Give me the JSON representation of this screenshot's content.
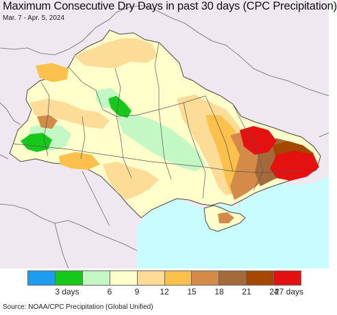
{
  "header": {
    "title": "Maximum Consecutive Dry Days in past 30 days (CPC Precipitation)",
    "subtitle": "Mar. 7 - Apr. 5, 2024"
  },
  "legend": {
    "colors": [
      "#1e9cf0",
      "#16c81a",
      "#c3f7c3",
      "#ffffcc",
      "#fcdc96",
      "#fcc04c",
      "#d48b4a",
      "#a56a3c",
      "#a44700",
      "#e41111"
    ],
    "labels": [
      {
        "text": "3 days",
        "boundary": 2
      },
      {
        "text": "6",
        "boundary": 3
      },
      {
        "text": "9",
        "boundary": 4
      },
      {
        "text": "12",
        "boundary": 5
      },
      {
        "text": "15",
        "boundary": 6
      },
      {
        "text": "18",
        "boundary": 7
      },
      {
        "text": "21",
        "boundary": 8
      },
      {
        "text": "24",
        "boundary": 9
      },
      {
        "text": "27 days",
        "boundary": 10
      }
    ]
  },
  "map": {
    "background_color": "#efe8f1",
    "sea_color": "#c8fcfe",
    "region_border_color": "#444444"
  },
  "footer": {
    "source": "Source: NOAA/CPC Precipitation (Global Unified)"
  }
}
